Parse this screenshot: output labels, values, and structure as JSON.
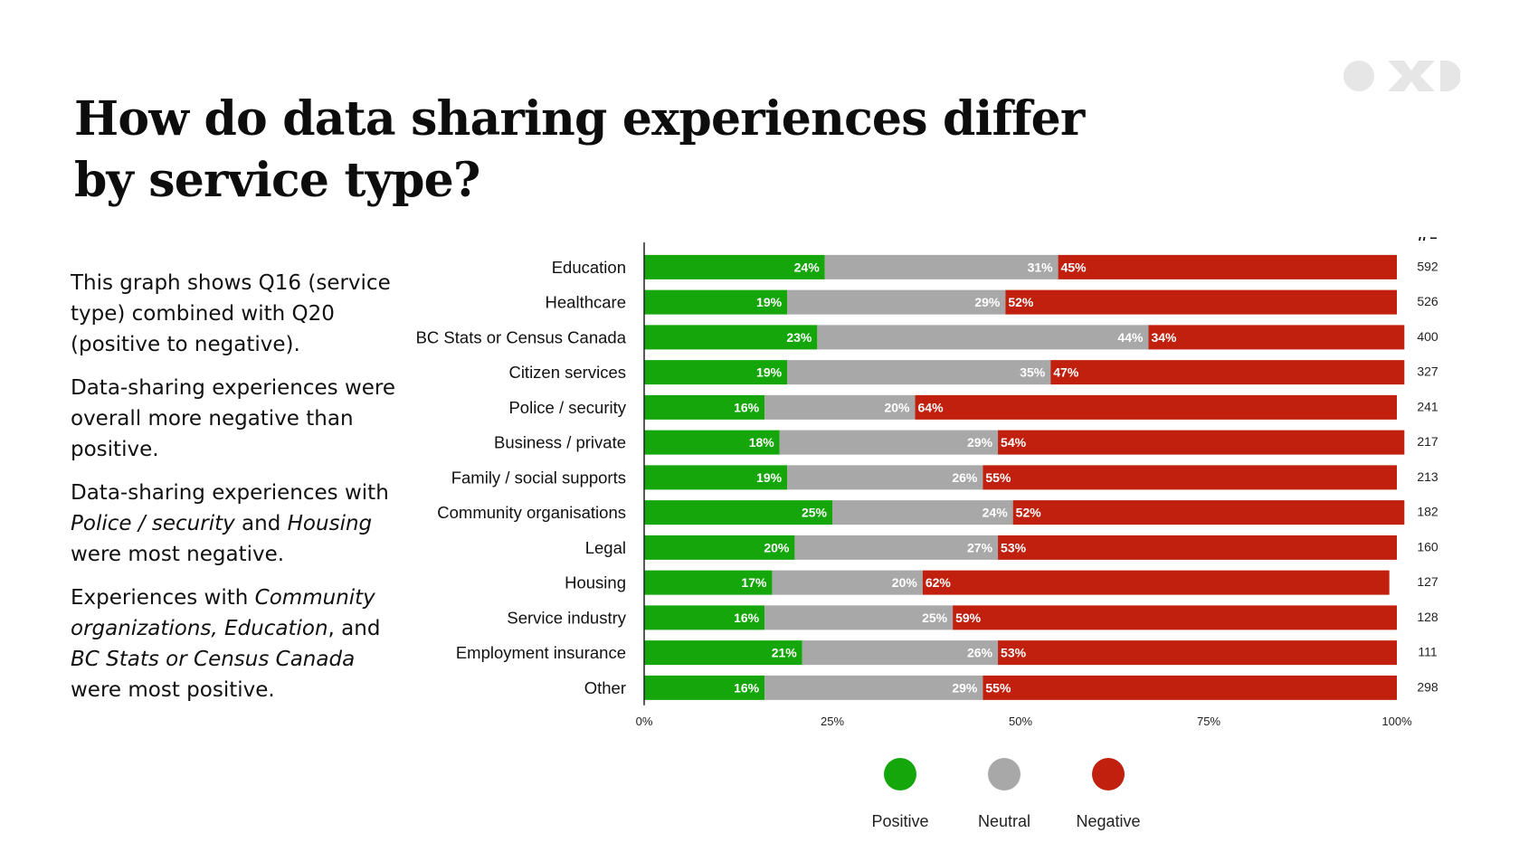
{
  "title": "How do data sharing experiences differ by service type?",
  "notes": [
    [
      {
        "t": "This graph shows Q16 (service type) combined with Q20 (positive to negative).",
        "i": false
      }
    ],
    [
      {
        "t": "Data-sharing experiences were overall more negative than positive.",
        "i": false
      }
    ],
    [
      {
        "t": "Data-sharing experiences with ",
        "i": false
      },
      {
        "t": "Police / security",
        "i": true
      },
      {
        "t": " and ",
        "i": false
      },
      {
        "t": "Housing",
        "i": true
      },
      {
        "t": " were most negative.",
        "i": false
      }
    ],
    [
      {
        "t": "Experiences with ",
        "i": false
      },
      {
        "t": "Community organizations, Education",
        "i": true
      },
      {
        "t": ", and ",
        "i": false
      },
      {
        "t": "BC Stats or Census Canada",
        "i": true
      },
      {
        "t": " were most positive.",
        "i": false
      }
    ]
  ],
  "colors": {
    "positive": "#14a60a",
    "neutral": "#a8a8a8",
    "negative": "#c1200f"
  },
  "chart_data": {
    "type": "bar",
    "orientation": "horizontal",
    "stacked": true,
    "categories": [
      "Education",
      "Healthcare",
      "BC Stats or Census Canada",
      "Citizen services",
      "Police / security",
      "Business / private",
      "Family / social supports",
      "Community organisations",
      "Legal",
      "Housing",
      "Service industry",
      "Employment insurance",
      "Other"
    ],
    "series": [
      {
        "name": "Positive",
        "values": [
          24,
          19,
          23,
          19,
          16,
          18,
          19,
          25,
          20,
          17,
          16,
          21,
          16
        ]
      },
      {
        "name": "Neutral",
        "values": [
          31,
          29,
          44,
          35,
          20,
          29,
          26,
          24,
          27,
          20,
          25,
          26,
          29
        ]
      },
      {
        "name": "Negative",
        "values": [
          45,
          52,
          34,
          47,
          64,
          54,
          55,
          52,
          53,
          62,
          59,
          53,
          55
        ]
      }
    ],
    "n_label": "n =",
    "n": [
      592,
      526,
      400,
      327,
      241,
      217,
      213,
      182,
      160,
      127,
      128,
      111,
      298
    ],
    "xlim": [
      0,
      100
    ],
    "xticks": [
      "0%",
      "25%",
      "50%",
      "75%",
      "100%"
    ],
    "legend_position": "bottom",
    "grid": false
  }
}
